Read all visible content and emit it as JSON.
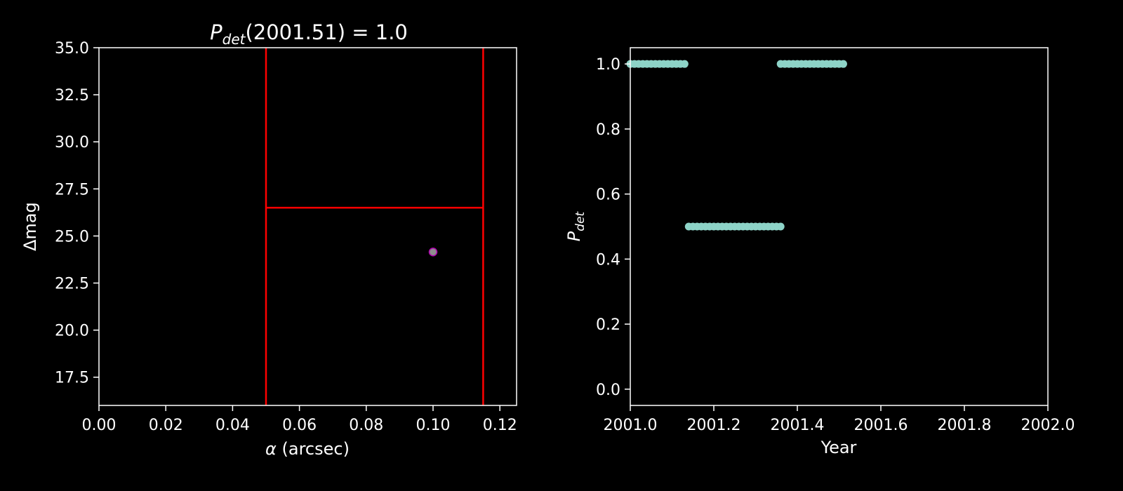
{
  "chart_data": [
    {
      "type": "scatter",
      "title_prefix": "P",
      "title_sub": "det",
      "title_rest": "(2001.51) = 1.0",
      "xlabel_greek": "α",
      "xlabel_rest": " (arcsec)",
      "ylabel": "Δmag",
      "xlim": [
        0.0,
        0.125
      ],
      "ylim": [
        16.0,
        35.0
      ],
      "xticks": [
        "0.00",
        "0.02",
        "0.04",
        "0.06",
        "0.08",
        "0.10",
        "0.12"
      ],
      "yticks": [
        "17.5",
        "20.0",
        "22.5",
        "25.0",
        "27.5",
        "30.0",
        "32.5",
        "35.0"
      ],
      "grid": false,
      "bounds": {
        "color": "#ff0000",
        "segments": [
          {
            "x": [
              0.05,
              0.05
            ],
            "y": [
              16.0,
              35.0
            ]
          },
          {
            "x": [
              0.115,
              0.115
            ],
            "y": [
              16.0,
              35.0
            ]
          },
          {
            "x": [
              0.05,
              0.115
            ],
            "y": [
              26.5,
              26.5
            ]
          }
        ]
      },
      "points": [
        {
          "x": 0.1,
          "y": 24.15
        }
      ],
      "point_fill": "#8e8e8e",
      "point_edge": "#b000b0"
    },
    {
      "type": "scatter",
      "xlabel": "Year",
      "ylabel_main": "P",
      "ylabel_sub": "det",
      "xlim": [
        2001.0,
        2002.0
      ],
      "ylim": [
        -0.05,
        1.05
      ],
      "xticks": [
        "2001.0",
        "2001.2",
        "2001.4",
        "2001.6",
        "2001.8",
        "2002.0"
      ],
      "yticks": [
        "0.0",
        "0.2",
        "0.4",
        "0.6",
        "0.8",
        "1.0"
      ],
      "grid": false,
      "color": "#8dd3c7",
      "series": [
        {
          "x": [
            2001.0,
            2001.01,
            2001.02,
            2001.03,
            2001.04,
            2001.05,
            2001.06,
            2001.07,
            2001.08,
            2001.09,
            2001.1,
            2001.11,
            2001.12,
            2001.13
          ],
          "y": [
            1,
            1,
            1,
            1,
            1,
            1,
            1,
            1,
            1,
            1,
            1,
            1,
            1,
            1
          ]
        },
        {
          "x": [
            2001.14,
            2001.15,
            2001.16,
            2001.17,
            2001.18,
            2001.19,
            2001.2,
            2001.21,
            2001.22,
            2001.23,
            2001.24,
            2001.25,
            2001.26,
            2001.27,
            2001.28,
            2001.29,
            2001.3,
            2001.31,
            2001.32,
            2001.33,
            2001.34,
            2001.35,
            2001.36
          ],
          "y": [
            0.5,
            0.5,
            0.5,
            0.5,
            0.5,
            0.5,
            0.5,
            0.5,
            0.5,
            0.5,
            0.5,
            0.5,
            0.5,
            0.5,
            0.5,
            0.5,
            0.5,
            0.5,
            0.5,
            0.5,
            0.5,
            0.5,
            0.5
          ]
        },
        {
          "x": [
            2001.36,
            2001.37,
            2001.38,
            2001.39,
            2001.4,
            2001.41,
            2001.42,
            2001.43,
            2001.44,
            2001.45,
            2001.46,
            2001.47,
            2001.48,
            2001.49,
            2001.5,
            2001.51
          ],
          "y": [
            1,
            1,
            1,
            1,
            1,
            1,
            1,
            1,
            1,
            1,
            1,
            1,
            1,
            1,
            1,
            1
          ]
        }
      ]
    }
  ]
}
